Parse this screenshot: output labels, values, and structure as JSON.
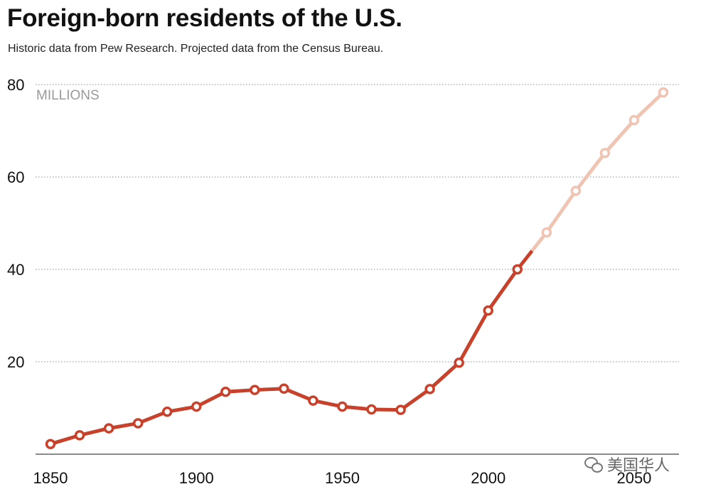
{
  "header": {
    "title": "Foreign-born residents of the U.S.",
    "subtitle": "Historic data from Pew Research. Projected data from the Census Bureau."
  },
  "watermark": {
    "text": "美国华人",
    "icon": "wechat-icon"
  },
  "chart_data": {
    "type": "line",
    "title": "Foreign-born residents of the U.S.",
    "subtitle": "Historic data from Pew Research. Projected data from the Census Bureau.",
    "unit_label": "MILLIONS",
    "xlim": [
      1850,
      2060
    ],
    "ylim": [
      0,
      80
    ],
    "xticks": [
      1850,
      1900,
      1950,
      2000,
      2050
    ],
    "yticks": [
      20,
      40,
      60,
      80
    ],
    "grid": "horizontal dotted",
    "series": [
      {
        "name": "",
        "color": "#c8412b",
        "x": [
          1850,
          1860,
          1870,
          1880,
          1890,
          1900,
          1910,
          1920,
          1930,
          1940,
          1950,
          1960,
          1970,
          1980,
          1990,
          2000,
          2010
        ],
        "y": [
          2.2,
          4.1,
          5.6,
          6.7,
          9.2,
          10.3,
          13.5,
          13.9,
          14.2,
          11.6,
          10.3,
          9.7,
          9.6,
          14.1,
          19.8,
          31.1,
          40.0
        ]
      },
      {
        "name": "",
        "color": "#f0c4b3",
        "x": [
          2020,
          2030,
          2040,
          2050,
          2060
        ],
        "y": [
          48.0,
          57.0,
          65.2,
          72.3,
          78.3
        ]
      }
    ]
  }
}
